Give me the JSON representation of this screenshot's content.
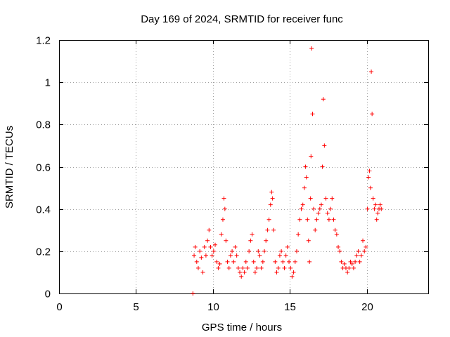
{
  "chart_data": {
    "type": "scatter",
    "title": "Day 169 of 2024, SRMTID for receiver func",
    "xlabel": "GPS time / hours",
    "ylabel": "SRMTID / TECUs",
    "xlim": [
      0,
      24
    ],
    "ylim": [
      0,
      1.2
    ],
    "xticks": [
      0,
      5,
      10,
      15,
      20
    ],
    "xtick_labels": [
      "0",
      "5",
      "10",
      "15",
      "20"
    ],
    "yticks": [
      0,
      0.2,
      0.4,
      0.6,
      0.8,
      1.0,
      1.2
    ],
    "ytick_labels": [
      "0",
      "0.2",
      "0.4",
      "0.6",
      "0.8",
      "1",
      "1.2"
    ],
    "grid": true,
    "marker": "+",
    "color": "#ff0000",
    "series": [
      {
        "name": "SRMTID",
        "x": [
          8.7,
          8.78,
          8.85,
          8.95,
          9.05,
          9.15,
          9.25,
          9.35,
          9.45,
          9.55,
          9.65,
          9.75,
          9.85,
          9.95,
          10.05,
          10.15,
          10.25,
          10.35,
          10.45,
          10.55,
          10.65,
          10.72,
          10.78,
          10.85,
          10.95,
          11.05,
          11.15,
          11.25,
          11.35,
          11.45,
          11.55,
          11.65,
          11.75,
          11.85,
          11.95,
          12.05,
          12.15,
          12.25,
          12.35,
          12.45,
          12.55,
          12.65,
          12.75,
          12.85,
          12.95,
          13.05,
          13.15,
          13.25,
          13.35,
          13.45,
          13.55,
          13.65,
          13.75,
          13.82,
          13.88,
          13.95,
          14.05,
          14.15,
          14.25,
          14.35,
          14.45,
          14.55,
          14.65,
          14.75,
          14.85,
          14.95,
          15.05,
          15.15,
          15.25,
          15.35,
          15.45,
          15.55,
          15.65,
          15.75,
          15.85,
          15.95,
          16.02,
          16.08,
          16.15,
          16.22,
          16.28,
          16.35,
          16.38,
          16.42,
          16.48,
          16.55,
          16.65,
          16.75,
          16.85,
          16.95,
          17.05,
          17.12,
          17.18,
          17.25,
          17.35,
          17.45,
          17.55,
          17.65,
          17.75,
          17.85,
          17.95,
          18.05,
          18.15,
          18.25,
          18.35,
          18.45,
          18.55,
          18.65,
          18.75,
          18.85,
          18.95,
          19.05,
          19.15,
          19.25,
          19.35,
          19.45,
          19.55,
          19.65,
          19.75,
          19.85,
          19.95,
          20.05,
          20.12,
          20.18,
          20.25,
          20.3,
          20.35,
          20.42,
          20.5,
          20.58,
          20.65,
          20.72,
          20.8,
          20.88,
          20.95
        ],
        "y": [
          0.0,
          0.18,
          0.22,
          0.15,
          0.12,
          0.2,
          0.17,
          0.1,
          0.22,
          0.18,
          0.25,
          0.3,
          0.22,
          0.18,
          0.2,
          0.23,
          0.15,
          0.12,
          0.14,
          0.28,
          0.35,
          0.45,
          0.4,
          0.25,
          0.15,
          0.12,
          0.18,
          0.2,
          0.15,
          0.22,
          0.18,
          0.12,
          0.1,
          0.08,
          0.12,
          0.1,
          0.15,
          0.12,
          0.2,
          0.25,
          0.28,
          0.15,
          0.1,
          0.12,
          0.2,
          0.18,
          0.12,
          0.15,
          0.2,
          0.25,
          0.3,
          0.35,
          0.42,
          0.48,
          0.45,
          0.3,
          0.15,
          0.1,
          0.12,
          0.18,
          0.2,
          0.15,
          0.12,
          0.18,
          0.22,
          0.15,
          0.12,
          0.08,
          0.1,
          0.15,
          0.2,
          0.28,
          0.35,
          0.4,
          0.42,
          0.5,
          0.6,
          0.55,
          0.35,
          0.25,
          0.15,
          0.45,
          0.65,
          1.16,
          0.85,
          0.4,
          0.3,
          0.35,
          0.38,
          0.4,
          0.42,
          0.6,
          0.92,
          0.7,
          0.45,
          0.38,
          0.35,
          0.4,
          0.45,
          0.35,
          0.3,
          0.28,
          0.22,
          0.2,
          0.15,
          0.12,
          0.14,
          0.12,
          0.1,
          0.12,
          0.15,
          0.14,
          0.12,
          0.15,
          0.18,
          0.2,
          0.15,
          0.18,
          0.25,
          0.2,
          0.22,
          0.4,
          0.55,
          0.58,
          0.5,
          1.05,
          0.85,
          0.45,
          0.4,
          0.42,
          0.35,
          0.38,
          0.4,
          0.42,
          0.4
        ]
      }
    ]
  }
}
